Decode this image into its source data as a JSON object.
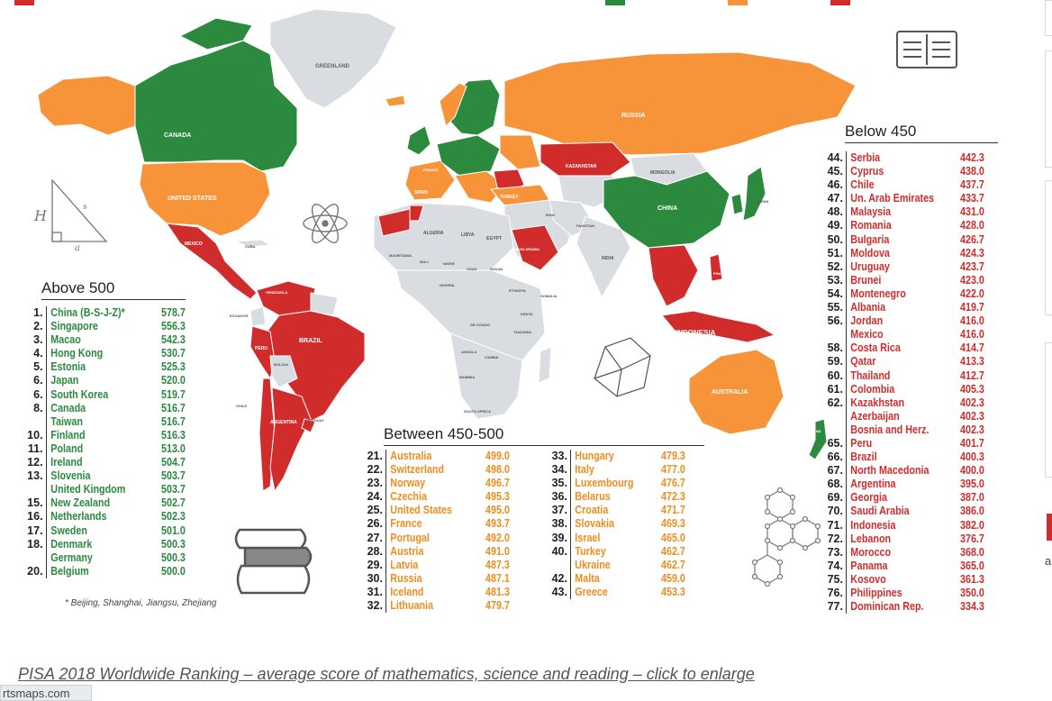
{
  "map": {
    "country_labels": {
      "greenland": "GREENLAND",
      "canada": "CANADA",
      "united_states": "UNITED STATES",
      "russia": "RUSSIA",
      "china": "CHINA",
      "mongolia": "MONGOLIA",
      "kazakhstan": "KAZAKHSTAN",
      "brazil": "BRAZIL",
      "australia": "AUSTRALIA",
      "indonesia": "INDONESIA",
      "mexico": "MEXICO",
      "algeria": "ALGERIA",
      "libya": "LIBYA",
      "egypt": "EGYPT",
      "niger": "NIGER",
      "chad": "CHAD",
      "sudan": "SUDAN",
      "mali": "MALI",
      "mauritania": "MAURITANIA",
      "nigeria": "NIGERIA",
      "ethiopia": "ETHIOPIA",
      "somalia": "SOMALIA",
      "dr_congo": "DR CONGO",
      "angola": "ANGOLA",
      "zambia": "ZAMBIA",
      "namibia": "NAMIBIA",
      "south_africa": "SOUTH AFRICA",
      "india": "INDIA",
      "iran": "IRAN",
      "saudi_arabia": "SAUDI ARABIA",
      "turkey": "TURKEY",
      "france": "FRANCE",
      "spain": "SPAIN",
      "peru": "PERU",
      "bolivia": "BOLIVIA",
      "chile": "CHILE",
      "argentina": "ARGENTINA",
      "uruguay": "URUGUAY",
      "venezuela": "VENEZUELA",
      "ecuador": "ECUADOR",
      "new_zealand": "NEW ZEALAND",
      "japan": "JAPAN",
      "philippines": "PHILIPPINES",
      "cuba": "CUBA",
      "tanzania": "TANZANIA",
      "kenya": "KENYA",
      "pakistan": "PAKISTAN"
    },
    "colors": {
      "above_500": "#2b8a3e",
      "between_450_500": "#f7943a",
      "below_450": "#d12c2c",
      "no_data": "#d9dde1",
      "border": "#ffffff"
    },
    "icons": [
      "book-icon",
      "triangle-icon",
      "atom-icon",
      "books-stack-icon",
      "polyhedron-icon",
      "molecule-icon"
    ],
    "triangle_labels": [
      "H",
      "s",
      "a"
    ]
  },
  "above500": {
    "title": "Above 500",
    "rows": [
      {
        "rank": "1.",
        "name": "China (B-S-J-Z)*",
        "score": "578.7"
      },
      {
        "rank": "2.",
        "name": "Singapore",
        "score": "556.3"
      },
      {
        "rank": "3.",
        "name": "Macao",
        "score": "542.3"
      },
      {
        "rank": "4.",
        "name": "Hong Kong",
        "score": "530.7"
      },
      {
        "rank": "5.",
        "name": "Estonia",
        "score": "525.3"
      },
      {
        "rank": "6.",
        "name": "Japan",
        "score": "520.0"
      },
      {
        "rank": "6.",
        "name": "South Korea",
        "score": "519.7"
      },
      {
        "rank": "8.",
        "name": "Canada",
        "score": "516.7"
      },
      {
        "rank": "",
        "name": "Taiwan",
        "score": "516.7"
      },
      {
        "rank": "10.",
        "name": "Finland",
        "score": "516.3"
      },
      {
        "rank": "11.",
        "name": "Poland",
        "score": "513.0"
      },
      {
        "rank": "12.",
        "name": "Ireland",
        "score": "504.7"
      },
      {
        "rank": "13.",
        "name": "Slovenia",
        "score": "503.7"
      },
      {
        "rank": "",
        "name": "United Kingdom",
        "score": "503.7"
      },
      {
        "rank": "15.",
        "name": "New Zealand",
        "score": "502.7"
      },
      {
        "rank": "16.",
        "name": "Netherlands",
        "score": "502.3"
      },
      {
        "rank": "17.",
        "name": "Sweden",
        "score": "501.0"
      },
      {
        "rank": "18.",
        "name": "Denmark",
        "score": "500.3"
      },
      {
        "rank": "",
        "name": "Germany",
        "score": "500.3"
      },
      {
        "rank": "20.",
        "name": "Belgium",
        "score": "500.0"
      }
    ],
    "footnote": "* Beijing, Shanghai, Jiangsu, Zhejiang"
  },
  "between": {
    "title": "Between 450-500",
    "col1": [
      {
        "rank": "21.",
        "name": "Australia",
        "score": "499.0"
      },
      {
        "rank": "22.",
        "name": "Switzerland",
        "score": "498.0"
      },
      {
        "rank": "23.",
        "name": "Norway",
        "score": "496.7"
      },
      {
        "rank": "24.",
        "name": "Czechia",
        "score": "495.3"
      },
      {
        "rank": "25.",
        "name": "United States",
        "score": "495.0"
      },
      {
        "rank": "26.",
        "name": "France",
        "score": "493.7"
      },
      {
        "rank": "27.",
        "name": "Portugal",
        "score": "492.0"
      },
      {
        "rank": "28.",
        "name": "Austria",
        "score": "491.0"
      },
      {
        "rank": "29.",
        "name": "Latvia",
        "score": "487.3"
      },
      {
        "rank": "30.",
        "name": "Russia",
        "score": "487.1"
      },
      {
        "rank": "31.",
        "name": "Iceland",
        "score": "481.3"
      },
      {
        "rank": "32.",
        "name": "Lithuania",
        "score": "479.7"
      }
    ],
    "col2": [
      {
        "rank": "33.",
        "name": "Hungary",
        "score": "479.3"
      },
      {
        "rank": "34.",
        "name": "Italy",
        "score": "477.0"
      },
      {
        "rank": "35.",
        "name": "Luxembourg",
        "score": "476.7"
      },
      {
        "rank": "36.",
        "name": "Belarus",
        "score": "472.3"
      },
      {
        "rank": "37.",
        "name": "Croatia",
        "score": "471.7"
      },
      {
        "rank": "38.",
        "name": "Slovakia",
        "score": "469.3"
      },
      {
        "rank": "39.",
        "name": "Israel",
        "score": "465.0"
      },
      {
        "rank": "40.",
        "name": "Turkey",
        "score": "462.7"
      },
      {
        "rank": "",
        "name": "Ukraine",
        "score": "462.7"
      },
      {
        "rank": "42.",
        "name": "Malta",
        "score": "459.0"
      },
      {
        "rank": "43.",
        "name": "Greece",
        "score": "453.3"
      }
    ]
  },
  "below450": {
    "title": "Below 450",
    "rows": [
      {
        "rank": "44.",
        "name": "Serbia",
        "score": "442.3"
      },
      {
        "rank": "45.",
        "name": "Cyprus",
        "score": "438.0"
      },
      {
        "rank": "46.",
        "name": "Chile",
        "score": "437.7"
      },
      {
        "rank": "47.",
        "name": "Un. Arab Emirates",
        "score": "433.7"
      },
      {
        "rank": "48.",
        "name": "Malaysia",
        "score": "431.0"
      },
      {
        "rank": "49.",
        "name": "Romania",
        "score": "428.0"
      },
      {
        "rank": "50.",
        "name": "Bulgaria",
        "score": "426.7"
      },
      {
        "rank": "51.",
        "name": "Moldova",
        "score": "424.3"
      },
      {
        "rank": "52.",
        "name": "Uruguay",
        "score": "423.7"
      },
      {
        "rank": "53.",
        "name": "Brunei",
        "score": "423.0"
      },
      {
        "rank": "54.",
        "name": "Montenegro",
        "score": "422.0"
      },
      {
        "rank": "55.",
        "name": "Albania",
        "score": "419.7"
      },
      {
        "rank": "56.",
        "name": "Jordan",
        "score": "416.0"
      },
      {
        "rank": "",
        "name": "Mexico",
        "score": "416.0"
      },
      {
        "rank": "58.",
        "name": "Costa Rica",
        "score": "414.7"
      },
      {
        "rank": "59.",
        "name": "Qatar",
        "score": "413.3"
      },
      {
        "rank": "60.",
        "name": "Thailand",
        "score": "412.7"
      },
      {
        "rank": "61.",
        "name": "Colombia",
        "score": "405.3"
      },
      {
        "rank": "62.",
        "name": "Kazakhstan",
        "score": "402.3"
      },
      {
        "rank": "",
        "name": "Azerbaijan",
        "score": "402.3"
      },
      {
        "rank": "",
        "name": "Bosnia and Herz.",
        "score": "402.3"
      },
      {
        "rank": "65.",
        "name": "Peru",
        "score": "401.7"
      },
      {
        "rank": "66.",
        "name": "Brazil",
        "score": "400.3"
      },
      {
        "rank": "67.",
        "name": "North Macedonia",
        "score": "400.0"
      },
      {
        "rank": "68.",
        "name": "Argentina",
        "score": "395.0"
      },
      {
        "rank": "69.",
        "name": "Georgia",
        "score": "387.0"
      },
      {
        "rank": "70.",
        "name": "Saudi Arabia",
        "score": "386.0"
      },
      {
        "rank": "71.",
        "name": "Indonesia",
        "score": "382.0"
      },
      {
        "rank": "72.",
        "name": "Lebanon",
        "score": "376.7"
      },
      {
        "rank": "73.",
        "name": "Morocco",
        "score": "368.0"
      },
      {
        "rank": "74.",
        "name": "Panama",
        "score": "365.0"
      },
      {
        "rank": "75.",
        "name": "Kosovo",
        "score": "361.3"
      },
      {
        "rank": "76.",
        "name": "Philippines",
        "score": "350.0"
      },
      {
        "rank": "77.",
        "name": "Dominican Rep.",
        "score": "334.3"
      }
    ]
  },
  "caption": "PISA 2018 Worldwide Ranking – average score of mathematics, science and reading – click to enlarge",
  "site_badge": "rtsmaps.com",
  "right_strip": {
    "letter": "a"
  }
}
